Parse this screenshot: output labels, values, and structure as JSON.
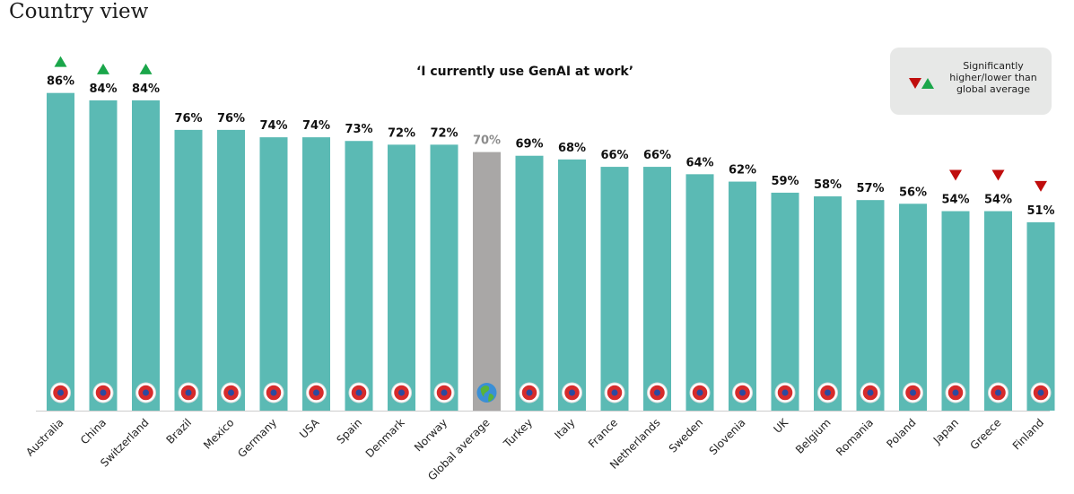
{
  "page": {
    "title": "Country view"
  },
  "legend": {
    "text": "Significantly higher/lower than global average",
    "up_color": "#1aa64a",
    "down_color": "#c00d0d"
  },
  "colors": {
    "bar": "#5bbab4",
    "average_bar": "#a9a7a6",
    "average_label": "#8c8c8c",
    "label": "#111111",
    "axis": "#cccccc"
  },
  "chart_data": {
    "type": "bar",
    "title": "‘I currently use GenAI at work’",
    "xlabel": "",
    "ylabel": "",
    "ylim": [
      0,
      100
    ],
    "grid": false,
    "legend_placement": "top-right",
    "categories": [
      "Australia",
      "China",
      "Switzerland",
      "Brazil",
      "Mexico",
      "Germany",
      "USA",
      "Spain",
      "Denmark",
      "Norway",
      "Global average",
      "Turkey",
      "Italy",
      "France",
      "Netherlands",
      "Sweden",
      "Slovenia",
      "UK",
      "Belgium",
      "Romania",
      "Poland",
      "Japan",
      "Greece",
      "Finland"
    ],
    "values": [
      86,
      84,
      84,
      76,
      76,
      74,
      74,
      73,
      72,
      72,
      70,
      69,
      68,
      66,
      66,
      64,
      62,
      59,
      58,
      57,
      56,
      54,
      54,
      51
    ],
    "value_labels": [
      "86%",
      "84%",
      "84%",
      "76%",
      "76%",
      "74%",
      "74%",
      "73%",
      "72%",
      "72%",
      "70%",
      "69%",
      "68%",
      "66%",
      "66%",
      "64%",
      "62%",
      "59%",
      "58%",
      "57%",
      "56%",
      "54%",
      "54%",
      "51%"
    ],
    "significance": [
      "higher",
      "higher",
      "higher",
      "",
      "",
      "",
      "",
      "",
      "",
      "",
      "",
      "",
      "",
      "",
      "",
      "",
      "",
      "",
      "",
      "",
      "",
      "lower",
      "lower",
      "lower"
    ],
    "flag_icons": [
      "australia-flag-icon",
      "china-flag-icon",
      "switzerland-flag-icon",
      "brazil-flag-icon",
      "mexico-flag-icon",
      "germany-flag-icon",
      "usa-flag-icon",
      "spain-flag-icon",
      "denmark-flag-icon",
      "norway-flag-icon",
      "globe-icon",
      "turkey-flag-icon",
      "italy-flag-icon",
      "france-flag-icon",
      "netherlands-flag-icon",
      "sweden-flag-icon",
      "slovenia-flag-icon",
      "uk-flag-icon",
      "belgium-flag-icon",
      "romania-flag-icon",
      "poland-flag-icon",
      "japan-flag-icon",
      "greece-flag-icon",
      "finland-flag-icon"
    ],
    "highlight_category": "Global average"
  }
}
